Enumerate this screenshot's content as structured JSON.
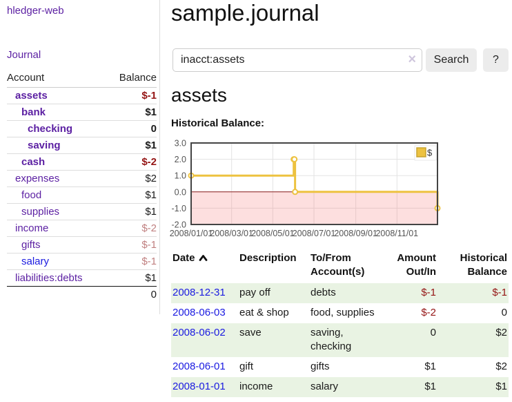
{
  "sidebar": {
    "brand": "hledger-web",
    "journal_link": "Journal",
    "accounts_table": {
      "col_account": "Account",
      "col_balance": "Balance",
      "rows": [
        {
          "name": "assets",
          "balance": "$-1"
        },
        {
          "name": "bank",
          "balance": "$1"
        },
        {
          "name": "checking",
          "balance": "0"
        },
        {
          "name": "saving",
          "balance": "$1"
        },
        {
          "name": "cash",
          "balance": "$-2"
        },
        {
          "name": "expenses",
          "balance": "$2"
        },
        {
          "name": "food",
          "balance": "$1"
        },
        {
          "name": "supplies",
          "balance": "$1"
        },
        {
          "name": "income",
          "balance": "$-2"
        },
        {
          "name": "gifts",
          "balance": "$-1"
        },
        {
          "name": "salary",
          "balance": "$-1"
        },
        {
          "name": "liabilities:debts",
          "balance": "$1"
        }
      ],
      "total": "0"
    }
  },
  "main": {
    "title": "sample.journal",
    "search": {
      "value": "inacct:assets",
      "clear_icon": "×",
      "button_label": "Search",
      "help_label": "?"
    },
    "account_heading": "assets",
    "section_label": "Historical Balance:"
  },
  "chart_data": {
    "type": "line",
    "style": "step",
    "title": "Historical Balance:",
    "series": [
      {
        "name": "$",
        "color": "#edc240",
        "points": [
          {
            "date": "2008-01-01",
            "value": 1
          },
          {
            "date": "2008-06-01",
            "value": 2
          },
          {
            "date": "2008-06-02",
            "value": 2
          },
          {
            "date": "2008-06-03",
            "value": 0
          },
          {
            "date": "2008-12-31",
            "value": -1
          }
        ]
      }
    ],
    "x_range": [
      "2008-01-01",
      "2008-12-31"
    ],
    "ylim": [
      -2,
      3
    ],
    "y_ticks": [
      3.0,
      2.0,
      1.0,
      0.0,
      -1.0,
      -2.0
    ],
    "x_ticks": [
      {
        "label": "2008/01/01",
        "date": "2008-01-01"
      },
      {
        "label": "2008/03/01",
        "date": "2008-03-01"
      },
      {
        "label": "2008/05/01",
        "date": "2008-05-01"
      },
      {
        "label": "2008/07/01",
        "date": "2008-07-01"
      },
      {
        "label": "2008/09/01",
        "date": "2008-09-01"
      },
      {
        "label": "2008/11/01",
        "date": "2008-11-01"
      }
    ],
    "grid": true,
    "legend_position": "top-right",
    "colors": {
      "negative_region": "rgba(245,110,110,0.22)",
      "zero_line": "#8b1c1c",
      "gridline": "#e3e3e3",
      "plot_border": "#434343",
      "tick_text": "#545454",
      "marker_fill": "#ffffff",
      "legend_square_border": "#c7a32f"
    }
  },
  "register_table": {
    "headers": {
      "date": "Date",
      "description": "Description",
      "accounts": "To/From Account(s)",
      "amount": "Amount Out/In",
      "balance": "Historical Balance"
    },
    "rows": [
      {
        "date": "2008-12-31",
        "description": "pay off",
        "accounts": "debts",
        "amount": "$-1",
        "balance": "$-1"
      },
      {
        "date": "2008-06-03",
        "description": "eat & shop",
        "accounts": "food, supplies",
        "amount": "$-2",
        "balance": "0"
      },
      {
        "date": "2008-06-02",
        "description": "save",
        "accounts": "saving, checking",
        "amount": "0",
        "balance": "$2"
      },
      {
        "date": "2008-06-01",
        "description": "gift",
        "accounts": "gifts",
        "amount": "$1",
        "balance": "$2"
      },
      {
        "date": "2008-01-01",
        "description": "income",
        "accounts": "salary",
        "amount": "$1",
        "balance": "$1"
      }
    ]
  }
}
